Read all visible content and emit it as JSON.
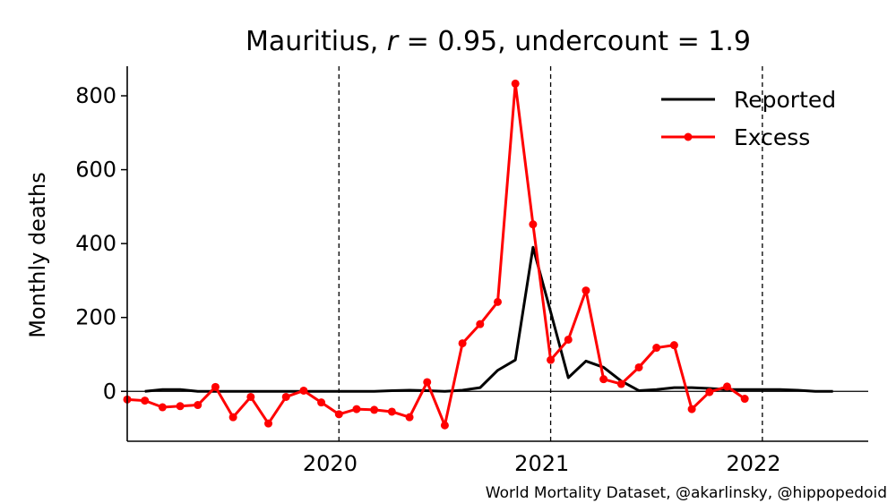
{
  "chart_data": {
    "type": "line",
    "title": "Mauritius, r = 0.95, undercount = 1.9",
    "title_parts": {
      "country": "Mauritius, ",
      "r_symbol": "r",
      "r_value": " = 0.95, undercount = 1.9"
    },
    "xlabel": "",
    "ylabel": "Monthly deaths",
    "ylim": [
      -135,
      880
    ],
    "xlim": [
      "2019-07",
      "2022-12"
    ],
    "y_ticks": [
      0,
      200,
      400,
      600,
      800
    ],
    "x_ticks": [
      "2020",
      "2021",
      "2022"
    ],
    "year_boundaries": [
      "2020-07",
      "2021-07",
      "2022-07"
    ],
    "grid": false,
    "legend_position": "top-right",
    "series": [
      {
        "name": "Reported",
        "color": "#000000",
        "marker": "none",
        "points": [
          [
            "2019-08",
            0
          ],
          [
            "2019-09",
            5
          ],
          [
            "2019-10",
            5
          ],
          [
            "2019-11",
            0
          ],
          [
            "2019-12",
            0
          ],
          [
            "2020-01",
            0
          ],
          [
            "2020-02",
            0
          ],
          [
            "2020-03",
            0
          ],
          [
            "2020-04",
            0
          ],
          [
            "2020-05",
            0
          ],
          [
            "2020-06",
            0
          ],
          [
            "2020-07",
            0
          ],
          [
            "2020-08",
            0
          ],
          [
            "2020-09",
            0
          ],
          [
            "2020-10",
            2
          ],
          [
            "2020-11",
            3
          ],
          [
            "2020-12",
            2
          ],
          [
            "2021-01",
            0
          ],
          [
            "2021-02",
            3
          ],
          [
            "2021-03",
            10
          ],
          [
            "2021-04",
            57
          ],
          [
            "2021-05",
            85
          ],
          [
            "2021-06",
            390
          ],
          [
            "2021-07",
            215
          ],
          [
            "2021-08",
            37
          ],
          [
            "2021-09",
            82
          ],
          [
            "2021-10",
            65
          ],
          [
            "2021-11",
            28
          ],
          [
            "2021-12",
            2
          ],
          [
            "2022-01",
            5
          ],
          [
            "2022-02",
            10
          ],
          [
            "2022-03",
            10
          ],
          [
            "2022-04",
            8
          ],
          [
            "2022-05",
            5
          ],
          [
            "2022-06",
            5
          ],
          [
            "2022-07",
            5
          ],
          [
            "2022-08",
            5
          ],
          [
            "2022-09",
            3
          ],
          [
            "2022-10",
            0
          ],
          [
            "2022-11",
            0
          ]
        ]
      },
      {
        "name": "Excess",
        "color": "#ff0000",
        "marker": "circle",
        "points": [
          [
            "2019-07",
            -22
          ],
          [
            "2019-08",
            -25
          ],
          [
            "2019-09",
            -43
          ],
          [
            "2019-10",
            -40
          ],
          [
            "2019-11",
            -37
          ],
          [
            "2019-12",
            12
          ],
          [
            "2020-01",
            -70
          ],
          [
            "2020-02",
            -15
          ],
          [
            "2020-03",
            -87
          ],
          [
            "2020-04",
            -15
          ],
          [
            "2020-05",
            2
          ],
          [
            "2020-06",
            -30
          ],
          [
            "2020-07",
            -62
          ],
          [
            "2020-08",
            -48
          ],
          [
            "2020-09",
            -50
          ],
          [
            "2020-10",
            -55
          ],
          [
            "2020-11",
            -70
          ],
          [
            "2020-12",
            25
          ],
          [
            "2021-01",
            -92
          ],
          [
            "2021-02",
            130
          ],
          [
            "2021-03",
            182
          ],
          [
            "2021-04",
            242
          ],
          [
            "2021-05",
            833
          ],
          [
            "2021-06",
            452
          ],
          [
            "2021-07",
            85
          ],
          [
            "2021-08",
            140
          ],
          [
            "2021-09",
            273
          ],
          [
            "2021-10",
            33
          ],
          [
            "2021-11",
            20
          ],
          [
            "2021-12",
            65
          ],
          [
            "2022-01",
            118
          ],
          [
            "2022-02",
            125
          ],
          [
            "2022-03",
            -48
          ],
          [
            "2022-04",
            -2
          ],
          [
            "2022-05",
            13
          ],
          [
            "2022-06",
            -20
          ]
        ]
      }
    ],
    "credit": "World Mortality Dataset, @akarlinsky, @hippopedoid"
  }
}
